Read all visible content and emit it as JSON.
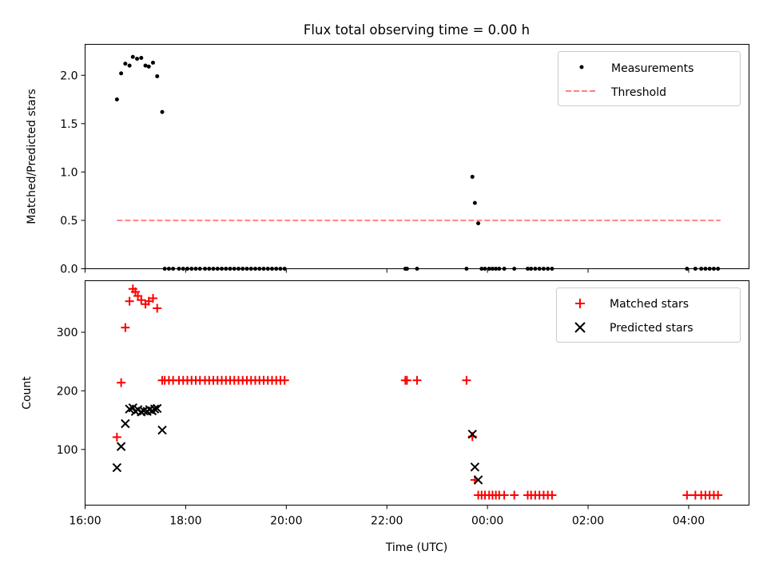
{
  "chart_data": [
    {
      "type": "scatter",
      "title": "Flux total observing time = 0.00 h",
      "xlabel": "",
      "ylabel": "Matched/Predicted stars",
      "xlim": [
        "16:00",
        "05:12"
      ],
      "ylim": [
        0,
        2.32
      ],
      "yticks": [
        "0.0",
        "0.5",
        "1.0",
        "1.5",
        "2.0"
      ],
      "legend": {
        "placement": "top-right",
        "entries": [
          "Measurements",
          "Threshold"
        ]
      },
      "series": [
        {
          "name": "Measurements",
          "color": "#000000",
          "marker": "dot",
          "points": [
            [
              "16:38",
              1.75
            ],
            [
              "16:43",
              2.02
            ],
            [
              "16:48",
              2.12
            ],
            [
              "16:53",
              2.1
            ],
            [
              "16:57",
              2.19
            ],
            [
              "17:02",
              2.17
            ],
            [
              "17:07",
              2.18
            ],
            [
              "17:12",
              2.1
            ],
            [
              "17:16",
              2.09
            ],
            [
              "17:21",
              2.13
            ],
            [
              "17:26",
              1.99
            ],
            [
              "17:32",
              1.62
            ],
            [
              "17:35",
              0
            ],
            [
              "17:40",
              0
            ],
            [
              "17:45",
              0
            ],
            [
              "17:52",
              0
            ],
            [
              "17:57",
              0
            ],
            [
              "18:02",
              0
            ],
            [
              "18:07",
              0
            ],
            [
              "18:12",
              0
            ],
            [
              "18:17",
              0
            ],
            [
              "18:23",
              0
            ],
            [
              "18:28",
              0
            ],
            [
              "18:33",
              0
            ],
            [
              "18:38",
              0
            ],
            [
              "18:43",
              0
            ],
            [
              "18:48",
              0
            ],
            [
              "18:53",
              0
            ],
            [
              "18:58",
              0
            ],
            [
              "19:03",
              0
            ],
            [
              "19:08",
              0
            ],
            [
              "19:13",
              0
            ],
            [
              "19:18",
              0
            ],
            [
              "19:23",
              0
            ],
            [
              "19:28",
              0
            ],
            [
              "19:33",
              0
            ],
            [
              "19:38",
              0
            ],
            [
              "19:43",
              0
            ],
            [
              "19:48",
              0
            ],
            [
              "19:53",
              0
            ],
            [
              "19:58",
              0
            ],
            [
              "22:22",
              0
            ],
            [
              "22:24",
              0
            ],
            [
              "22:36",
              0
            ],
            [
              "23:35",
              0
            ],
            [
              "23:42",
              0.95
            ],
            [
              "23:45",
              0.68
            ],
            [
              "23:49",
              0.47
            ],
            [
              "23:53",
              0
            ],
            [
              "23:57",
              0
            ],
            [
              "00:02",
              0
            ],
            [
              "00:06",
              0
            ],
            [
              "00:10",
              0
            ],
            [
              "00:14",
              0
            ],
            [
              "00:20",
              0
            ],
            [
              "00:32",
              0
            ],
            [
              "00:48",
              0
            ],
            [
              "00:52",
              0
            ],
            [
              "00:57",
              0
            ],
            [
              "01:02",
              0
            ],
            [
              "01:07",
              0
            ],
            [
              "01:12",
              0
            ],
            [
              "01:17",
              0
            ],
            [
              "03:58",
              0
            ],
            [
              "04:08",
              0
            ],
            [
              "04:15",
              0
            ],
            [
              "04:20",
              0
            ],
            [
              "04:25",
              0
            ],
            [
              "04:30",
              0
            ],
            [
              "04:35",
              0
            ]
          ]
        },
        {
          "name": "Threshold",
          "color": "#ff7f7f",
          "style": "dashed",
          "points": [
            [
              "16:38",
              0.5
            ],
            [
              "04:38",
              0.5
            ]
          ]
        }
      ]
    },
    {
      "type": "scatter",
      "title": "",
      "xlabel": "Time (UTC)",
      "ylabel": "Count",
      "xlim": [
        "16:00",
        "05:12"
      ],
      "ylim": [
        5,
        388
      ],
      "xticks": [
        "16:00",
        "18:00",
        "20:00",
        "22:00",
        "00:00",
        "02:00",
        "04:00"
      ],
      "yticks": [
        "100",
        "200",
        "300"
      ],
      "legend": {
        "placement": "top-right",
        "entries": [
          "Matched stars",
          "Predicted stars"
        ]
      },
      "series": [
        {
          "name": "Matched stars",
          "color": "#ff0000",
          "marker": "plus",
          "points": [
            [
              "16:38",
              121
            ],
            [
              "16:43",
              214
            ],
            [
              "16:48",
              308
            ],
            [
              "16:53",
              353
            ],
            [
              "16:57",
              374
            ],
            [
              "17:00",
              369
            ],
            [
              "17:03",
              362
            ],
            [
              "17:07",
              355
            ],
            [
              "17:12",
              348
            ],
            [
              "17:16",
              353
            ],
            [
              "17:21",
              358
            ],
            [
              "17:26",
              341
            ],
            [
              "17:32",
              218
            ],
            [
              "17:35",
              218
            ],
            [
              "17:40",
              218
            ],
            [
              "17:45",
              218
            ],
            [
              "17:52",
              218
            ],
            [
              "17:57",
              218
            ],
            [
              "18:02",
              218
            ],
            [
              "18:07",
              218
            ],
            [
              "18:12",
              218
            ],
            [
              "18:17",
              218
            ],
            [
              "18:23",
              218
            ],
            [
              "18:28",
              218
            ],
            [
              "18:33",
              218
            ],
            [
              "18:38",
              218
            ],
            [
              "18:43",
              218
            ],
            [
              "18:48",
              218
            ],
            [
              "18:53",
              218
            ],
            [
              "18:58",
              218
            ],
            [
              "19:03",
              218
            ],
            [
              "19:08",
              218
            ],
            [
              "19:13",
              218
            ],
            [
              "19:18",
              218
            ],
            [
              "19:23",
              218
            ],
            [
              "19:28",
              218
            ],
            [
              "19:33",
              218
            ],
            [
              "19:38",
              218
            ],
            [
              "19:43",
              218
            ],
            [
              "19:48",
              218
            ],
            [
              "19:53",
              218
            ],
            [
              "19:58",
              218
            ],
            [
              "22:22",
              218
            ],
            [
              "22:24",
              218
            ],
            [
              "22:36",
              218
            ],
            [
              "23:35",
              218
            ],
            [
              "23:42",
              122
            ],
            [
              "23:45",
              48
            ],
            [
              "23:49",
              22
            ],
            [
              "23:53",
              22
            ],
            [
              "23:57",
              22
            ],
            [
              "00:02",
              22
            ],
            [
              "00:06",
              22
            ],
            [
              "00:10",
              22
            ],
            [
              "00:14",
              22
            ],
            [
              "00:20",
              22
            ],
            [
              "00:32",
              22
            ],
            [
              "00:48",
              22
            ],
            [
              "00:52",
              22
            ],
            [
              "00:57",
              22
            ],
            [
              "01:02",
              22
            ],
            [
              "01:07",
              22
            ],
            [
              "01:12",
              22
            ],
            [
              "01:17",
              22
            ],
            [
              "03:58",
              22
            ],
            [
              "04:08",
              22
            ],
            [
              "04:15",
              22
            ],
            [
              "04:20",
              22
            ],
            [
              "04:25",
              22
            ],
            [
              "04:30",
              22
            ],
            [
              "04:35",
              22
            ]
          ]
        },
        {
          "name": "Predicted stars",
          "color": "#000000",
          "marker": "x",
          "points": [
            [
              "16:38",
              69
            ],
            [
              "16:43",
              105
            ],
            [
              "16:48",
              144
            ],
            [
              "16:53",
              169
            ],
            [
              "16:57",
              171
            ],
            [
              "17:00",
              165
            ],
            [
              "17:03",
              168
            ],
            [
              "17:07",
              164
            ],
            [
              "17:10",
              166
            ],
            [
              "17:14",
              165
            ],
            [
              "17:17",
              168
            ],
            [
              "17:20",
              166
            ],
            [
              "17:23",
              169
            ],
            [
              "17:26",
              170
            ],
            [
              "17:32",
              133
            ],
            [
              "23:42",
              126
            ],
            [
              "23:45",
              70
            ],
            [
              "23:49",
              48
            ]
          ]
        }
      ]
    }
  ]
}
